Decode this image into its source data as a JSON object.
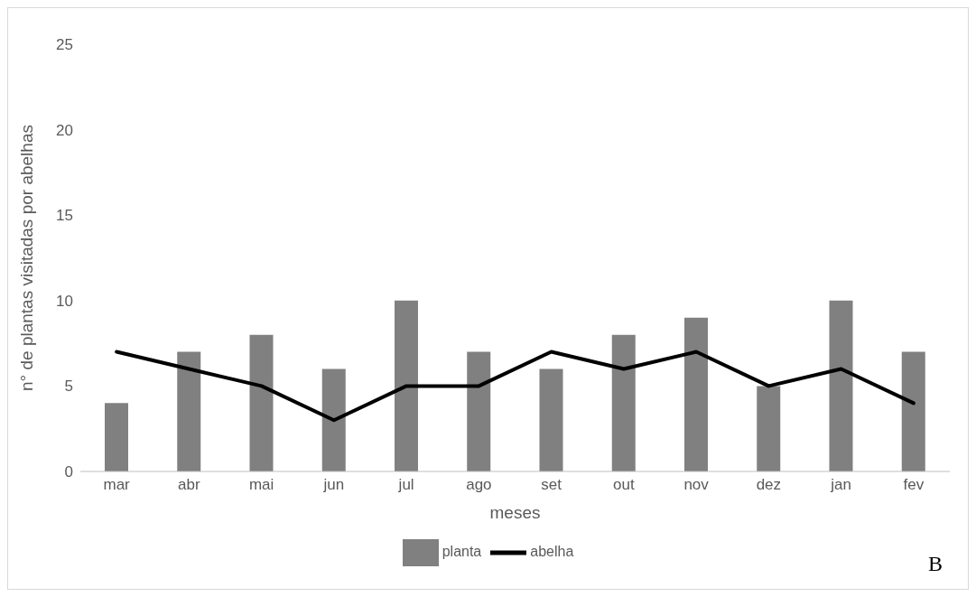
{
  "chart_data": {
    "type": "bar",
    "xlabel": "meses",
    "ylabel": "n° de plantas visitadas por abelhas",
    "categories": [
      "mar",
      "abr",
      "mai",
      "jun",
      "jul",
      "ago",
      "set",
      "out",
      "nov",
      "dez",
      "jan",
      "fev"
    ],
    "series": [
      {
        "name": "planta",
        "color": "#808080",
        "values": [
          4,
          7,
          8,
          6,
          10,
          7,
          6,
          8,
          9,
          5,
          10,
          7
        ]
      },
      {
        "name": "abelha",
        "type": "line",
        "color": "#000000",
        "values": [
          7,
          6,
          5,
          3,
          5,
          5,
          7,
          6,
          7,
          5,
          6,
          4
        ]
      }
    ],
    "ylim": [
      0,
      25
    ],
    "yticks": [
      0,
      5,
      10,
      15,
      20,
      25
    ],
    "grid": false,
    "legend": "bottom",
    "marker": "none",
    "line_style": "solid",
    "annotations": [
      "B"
    ]
  }
}
